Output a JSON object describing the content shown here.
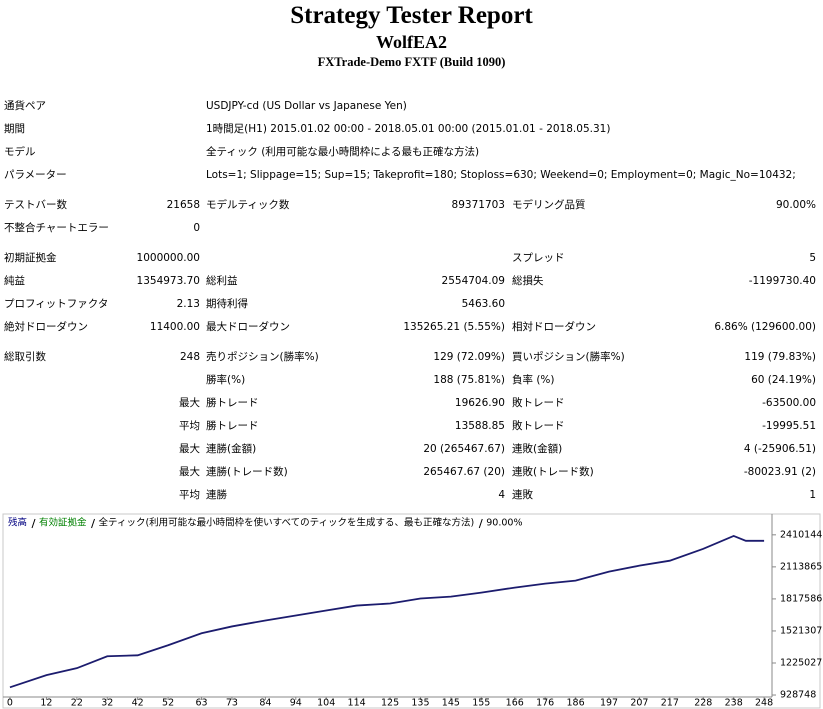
{
  "header": {
    "title": "Strategy Tester Report",
    "expert": "WolfEA2",
    "broker": "FXTrade-Demo FXTF (Build 1090)"
  },
  "info": [
    [
      "通貨ペア",
      "USDJPY-cd (US Dollar vs Japanese Yen)"
    ],
    [
      "期間",
      "1時間足(H1) 2015.01.02 00:00 - 2018.05.01 00:00 (2015.01.01 - 2018.05.31)"
    ],
    [
      "モデル",
      "全ティック (利用可能な最小時間枠による最も正確な方法)"
    ],
    [
      "パラメーター",
      "Lots=1; Slippage=15; Sup=15; Takeprofit=180; Stoploss=630; Weekend=0; Employment=0; Magic_No=10432;"
    ]
  ],
  "sections": [
    [
      [
        "テストバー数",
        "21658",
        "モデルティック数",
        "89371703",
        "モデリング品質",
        "90.00%"
      ],
      [
        "不整合チャートエラー",
        "0"
      ]
    ],
    [
      [
        "初期証拠金",
        "1000000.00",
        null,
        null,
        "スプレッド",
        "5"
      ],
      [
        "純益",
        "1354973.70",
        "総利益",
        "2554704.09",
        "総損失",
        "-1199730.40"
      ],
      [
        "プロフィットファクタ",
        "2.13",
        "期待利得",
        "5463.60"
      ],
      [
        "絶対ドローダウン",
        "11400.00",
        "最大ドローダウン",
        "135265.21 (5.55%)",
        "相対ドローダウン",
        "6.86% (129600.00)"
      ]
    ],
    [
      [
        "総取引数",
        "248",
        "売りポジション(勝率%)",
        "129 (72.09%)",
        "買いポジション(勝率%)",
        "119 (79.83%)"
      ],
      [
        null,
        null,
        "勝率(%)",
        "188 (75.81%)",
        "負率 (%)",
        "60 (24.19%)"
      ],
      [
        null,
        "最大",
        "勝トレード",
        "19626.90",
        "敗トレード",
        "-63500.00"
      ],
      [
        null,
        "平均",
        "勝トレード",
        "13588.85",
        "敗トレード",
        "-19995.51"
      ],
      [
        null,
        "最大",
        "連勝(金額)",
        "20 (265467.67)",
        "連敗(金額)",
        "4 (-25906.51)"
      ],
      [
        null,
        "最大",
        "連勝(トレード数)",
        "265467.67 (20)",
        "連敗(トレード数)",
        "-80023.91 (2)"
      ],
      [
        null,
        "平均",
        "連勝",
        "4",
        "連敗",
        "1"
      ]
    ]
  ],
  "chart_data": {
    "type": "line",
    "legend": [
      {
        "text": "残高",
        "color": "#000080"
      },
      {
        "text": "有効証拠金",
        "color": "#008000"
      },
      {
        "text": "全ティック(利用可能な最小時間枠を使いすべてのティックを生成する、最も正確な方法)"
      },
      {
        "text": "90.00%"
      }
    ],
    "color": "#1c1c6e",
    "x": [
      0,
      12,
      22,
      32,
      42,
      52,
      63,
      73,
      84,
      94,
      104,
      114,
      125,
      135,
      145,
      155,
      166,
      176,
      186,
      197,
      207,
      217,
      228,
      238,
      242,
      248
    ],
    "values": [
      1000000,
      1113000,
      1177000,
      1287000,
      1296000,
      1389000,
      1500000,
      1563000,
      1618000,
      1664000,
      1710000,
      1756000,
      1775000,
      1821000,
      1839000,
      1876000,
      1922000,
      1959000,
      1987000,
      2070000,
      2125000,
      2171000,
      2281000,
      2400000,
      2355000,
      2355000
    ],
    "xlim": [
      -1.3,
      250.6
    ],
    "xticks": [
      0,
      12,
      22,
      32,
      42,
      52,
      63,
      73,
      84,
      94,
      104,
      114,
      125,
      135,
      145,
      155,
      166,
      176,
      186,
      197,
      207,
      217,
      228,
      238,
      248
    ],
    "ylim": [
      855000,
      2575000
    ],
    "yticks": [
      928748,
      1225027,
      1521307,
      1817586,
      2113865,
      2410144
    ]
  }
}
